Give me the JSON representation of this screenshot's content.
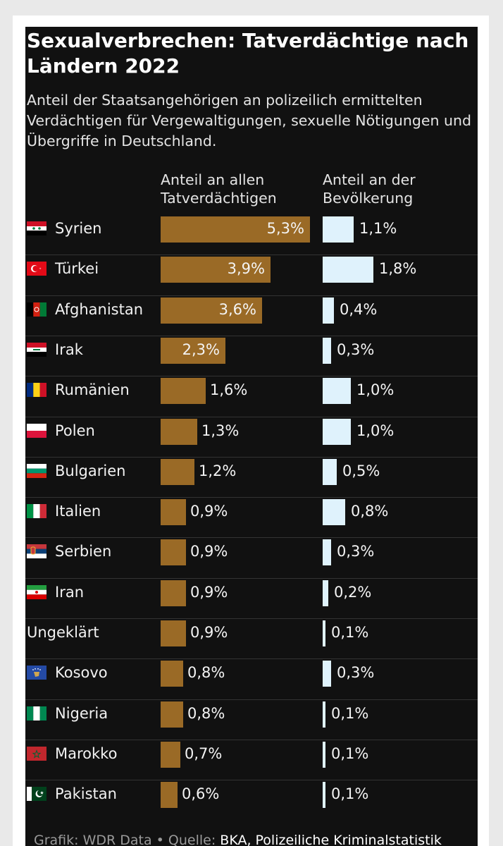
{
  "chart_data": {
    "type": "bar",
    "title": "Sexualverbrechen: Tatverdächtige nach Ländern 2022",
    "subtitle": "Anteil der Staatsangehörigen an polizeilich ermittelten Verdächtigen für Vergewaltigungen, sexuelle Nötigungen und Übergriffe in Deutschland.",
    "series": [
      {
        "name": "Anteil an allen Tatverdächtigen",
        "color": "#9a6a26",
        "values": [
          5.3,
          3.9,
          3.6,
          2.3,
          1.6,
          1.3,
          1.2,
          0.9,
          0.9,
          0.9,
          0.9,
          0.8,
          0.8,
          0.7,
          0.6
        ]
      },
      {
        "name": "Anteil an der Bevölkerung",
        "color": "#dff2fc",
        "values": [
          1.1,
          1.8,
          0.4,
          0.3,
          1.0,
          1.0,
          0.5,
          0.8,
          0.3,
          0.2,
          0.1,
          0.3,
          0.1,
          0.1,
          0.1
        ]
      }
    ],
    "rows": [
      {
        "country": "Syrien",
        "flag": "syria-flag",
        "v1": 5.3,
        "l1": "5,3%",
        "v2": 1.1,
        "l2": "1,1%"
      },
      {
        "country": "Türkei",
        "flag": "turkey-flag",
        "v1": 3.9,
        "l1": "3,9%",
        "v2": 1.8,
        "l2": "1,8%"
      },
      {
        "country": "Afghanistan",
        "flag": "afghanistan-flag",
        "v1": 3.6,
        "l1": "3,6%",
        "v2": 0.4,
        "l2": "0,4%"
      },
      {
        "country": "Irak",
        "flag": "iraq-flag",
        "v1": 2.3,
        "l1": "2,3%",
        "v2": 0.3,
        "l2": "0,3%"
      },
      {
        "country": "Rumänien",
        "flag": "romania-flag",
        "v1": 1.6,
        "l1": "1,6%",
        "v2": 1.0,
        "l2": "1,0%"
      },
      {
        "country": "Polen",
        "flag": "poland-flag",
        "v1": 1.3,
        "l1": "1,3%",
        "v2": 1.0,
        "l2": "1,0%"
      },
      {
        "country": "Bulgarien",
        "flag": "bulgaria-flag",
        "v1": 1.2,
        "l1": "1,2%",
        "v2": 0.5,
        "l2": "0,5%"
      },
      {
        "country": "Italien",
        "flag": "italy-flag",
        "v1": 0.9,
        "l1": "0,9%",
        "v2": 0.8,
        "l2": "0,8%"
      },
      {
        "country": "Serbien",
        "flag": "serbia-flag",
        "v1": 0.9,
        "l1": "0,9%",
        "v2": 0.3,
        "l2": "0,3%"
      },
      {
        "country": "Iran",
        "flag": "iran-flag",
        "v1": 0.9,
        "l1": "0,9%",
        "v2": 0.2,
        "l2": "0,2%"
      },
      {
        "country": "Ungeklärt",
        "flag": "",
        "v1": 0.9,
        "l1": "0,9%",
        "v2": 0.1,
        "l2": "0,1%"
      },
      {
        "country": "Kosovo",
        "flag": "kosovo-flag",
        "v1": 0.8,
        "l1": "0,8%",
        "v2": 0.3,
        "l2": "0,3%"
      },
      {
        "country": "Nigeria",
        "flag": "nigeria-flag",
        "v1": 0.8,
        "l1": "0,8%",
        "v2": 0.1,
        "l2": "0,1%"
      },
      {
        "country": "Marokko",
        "flag": "morocco-flag",
        "v1": 0.7,
        "l1": "0,7%",
        "v2": 0.1,
        "l2": "0,1%"
      },
      {
        "country": "Pakistan",
        "flag": "pakistan-flag",
        "v1": 0.6,
        "l1": "0,6%",
        "v2": 0.1,
        "l2": "0,1%"
      }
    ]
  },
  "header": {
    "col1_line1": "Anteil an allen",
    "col1_line2": "Tatverdächtigen",
    "col2_line1": "Anteil an der",
    "col2_line2": "Bevölkerung"
  },
  "footer": {
    "prefix": "Grafik: WDR Data • Quelle: ",
    "source": "BKA, Polizeiliche Kriminalstatistik"
  },
  "colors": {
    "background": "#111111",
    "bar_suspects": "#9a6a26",
    "bar_population": "#dff2fc"
  }
}
